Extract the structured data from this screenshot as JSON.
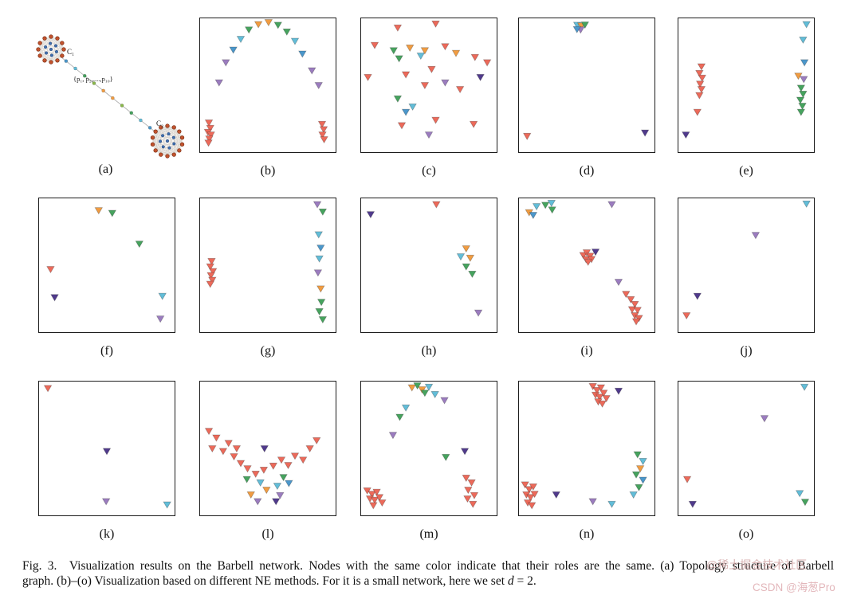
{
  "palette": {
    "R": "#ec6a5a",
    "O": "#f19c41",
    "G": "#46a35e",
    "T": "#62bdd8",
    "B": "#4b97cb",
    "P": "#9b7cbf",
    "D": "#503a8c"
  },
  "topology": {
    "c1_label": "C₁",
    "c2_label": "C₂",
    "path_label": "{p₁, p₂,....,p₁₀}",
    "cluster_node_color": "#c2532e",
    "cluster_node_stroke": "#7a2d12",
    "inner_node_color": "#3f6fae",
    "inner_node_stroke": "#28477c",
    "edge_color": "#c9c2b8",
    "path_line_color": "#9a9a9a",
    "path_colors": [
      "#4b97cb",
      "#62bdd8",
      "#46a35e",
      "#8ab84a",
      "#f19c41",
      "#f19c41",
      "#8ab84a",
      "#46a35e",
      "#62bdd8",
      "#4b97cb"
    ]
  },
  "panels": [
    {
      "id": "a",
      "label": "(a)",
      "type": "topology"
    },
    {
      "id": "b",
      "label": "(b)",
      "type": "scatter",
      "points": [
        [
          0.065,
          0.78,
          "R"
        ],
        [
          0.075,
          0.82,
          "R"
        ],
        [
          0.058,
          0.85,
          "R"
        ],
        [
          0.08,
          0.87,
          "R"
        ],
        [
          0.068,
          0.9,
          "R"
        ],
        [
          0.062,
          0.93,
          "R"
        ],
        [
          0.9,
          0.79,
          "R"
        ],
        [
          0.912,
          0.83,
          "R"
        ],
        [
          0.903,
          0.87,
          "R"
        ],
        [
          0.915,
          0.905,
          "R"
        ],
        [
          0.14,
          0.48,
          "P"
        ],
        [
          0.19,
          0.33,
          "P"
        ],
        [
          0.245,
          0.235,
          "B"
        ],
        [
          0.3,
          0.155,
          "T"
        ],
        [
          0.36,
          0.085,
          "G"
        ],
        [
          0.43,
          0.045,
          "O"
        ],
        [
          0.505,
          0.03,
          "O"
        ],
        [
          0.575,
          0.05,
          "G"
        ],
        [
          0.64,
          0.1,
          "G"
        ],
        [
          0.7,
          0.17,
          "T"
        ],
        [
          0.755,
          0.265,
          "B"
        ],
        [
          0.825,
          0.39,
          "P"
        ],
        [
          0.875,
          0.5,
          "P"
        ]
      ]
    },
    {
      "id": "c",
      "label": "(c)",
      "type": "scatter",
      "points": [
        [
          0.27,
          0.07,
          "R"
        ],
        [
          0.55,
          0.04,
          "R"
        ],
        [
          0.1,
          0.2,
          "R"
        ],
        [
          0.24,
          0.24,
          "G"
        ],
        [
          0.36,
          0.22,
          "O"
        ],
        [
          0.28,
          0.3,
          "G"
        ],
        [
          0.44,
          0.28,
          "T"
        ],
        [
          0.47,
          0.24,
          "O"
        ],
        [
          0.62,
          0.21,
          "R"
        ],
        [
          0.7,
          0.26,
          "O"
        ],
        [
          0.84,
          0.29,
          "R"
        ],
        [
          0.93,
          0.33,
          "R"
        ],
        [
          0.88,
          0.44,
          "D"
        ],
        [
          0.05,
          0.44,
          "R"
        ],
        [
          0.33,
          0.42,
          "R"
        ],
        [
          0.52,
          0.38,
          "R"
        ],
        [
          0.47,
          0.5,
          "R"
        ],
        [
          0.62,
          0.48,
          "P"
        ],
        [
          0.73,
          0.53,
          "R"
        ],
        [
          0.27,
          0.6,
          "G"
        ],
        [
          0.33,
          0.7,
          "B"
        ],
        [
          0.38,
          0.66,
          "T"
        ],
        [
          0.3,
          0.8,
          "R"
        ],
        [
          0.55,
          0.76,
          "R"
        ],
        [
          0.5,
          0.87,
          "P"
        ],
        [
          0.83,
          0.79,
          "R"
        ]
      ]
    },
    {
      "id": "d",
      "label": "(d)",
      "type": "scatter",
      "points": [
        [
          0.43,
          0.05,
          "T"
        ],
        [
          0.46,
          0.055,
          "O"
        ],
        [
          0.487,
          0.048,
          "G"
        ],
        [
          0.455,
          0.085,
          "P"
        ],
        [
          0.428,
          0.082,
          "B"
        ],
        [
          0.06,
          0.88,
          "R"
        ],
        [
          0.93,
          0.855,
          "D"
        ]
      ]
    },
    {
      "id": "e",
      "label": "(e)",
      "type": "scatter",
      "points": [
        [
          0.945,
          0.045,
          "T"
        ],
        [
          0.92,
          0.16,
          "T"
        ],
        [
          0.93,
          0.33,
          "B"
        ],
        [
          0.17,
          0.36,
          "R"
        ],
        [
          0.155,
          0.41,
          "R"
        ],
        [
          0.175,
          0.445,
          "R"
        ],
        [
          0.16,
          0.49,
          "R"
        ],
        [
          0.17,
          0.53,
          "R"
        ],
        [
          0.155,
          0.575,
          "R"
        ],
        [
          0.14,
          0.7,
          "R"
        ],
        [
          0.885,
          0.43,
          "O"
        ],
        [
          0.925,
          0.455,
          "P"
        ],
        [
          0.905,
          0.52,
          "G"
        ],
        [
          0.92,
          0.565,
          "G"
        ],
        [
          0.9,
          0.61,
          "G"
        ],
        [
          0.915,
          0.655,
          "G"
        ],
        [
          0.905,
          0.7,
          "G"
        ],
        [
          0.055,
          0.87,
          "D"
        ]
      ]
    },
    {
      "id": "f",
      "label": "(f)",
      "type": "scatter",
      "points": [
        [
          0.44,
          0.09,
          "O"
        ],
        [
          0.54,
          0.11,
          "G"
        ],
        [
          0.74,
          0.34,
          "G"
        ],
        [
          0.085,
          0.53,
          "R"
        ],
        [
          0.115,
          0.74,
          "D"
        ],
        [
          0.91,
          0.73,
          "T"
        ],
        [
          0.895,
          0.9,
          "P"
        ]
      ]
    },
    {
      "id": "g",
      "label": "(g)",
      "type": "scatter",
      "points": [
        [
          0.085,
          0.47,
          "R"
        ],
        [
          0.075,
          0.51,
          "R"
        ],
        [
          0.095,
          0.545,
          "R"
        ],
        [
          0.08,
          0.575,
          "R"
        ],
        [
          0.09,
          0.61,
          "R"
        ],
        [
          0.075,
          0.64,
          "R"
        ],
        [
          0.865,
          0.045,
          "P"
        ],
        [
          0.905,
          0.1,
          "G"
        ],
        [
          0.875,
          0.27,
          "T"
        ],
        [
          0.89,
          0.37,
          "B"
        ],
        [
          0.88,
          0.45,
          "T"
        ],
        [
          0.87,
          0.555,
          "P"
        ],
        [
          0.89,
          0.675,
          "O"
        ],
        [
          0.895,
          0.775,
          "G"
        ],
        [
          0.88,
          0.845,
          "G"
        ],
        [
          0.905,
          0.905,
          "G"
        ]
      ]
    },
    {
      "id": "h",
      "label": "(h)",
      "type": "scatter",
      "points": [
        [
          0.07,
          0.12,
          "D"
        ],
        [
          0.555,
          0.045,
          "R"
        ],
        [
          0.775,
          0.375,
          "O"
        ],
        [
          0.735,
          0.435,
          "T"
        ],
        [
          0.805,
          0.445,
          "O"
        ],
        [
          0.775,
          0.51,
          "G"
        ],
        [
          0.82,
          0.565,
          "G"
        ],
        [
          0.865,
          0.855,
          "P"
        ]
      ]
    },
    {
      "id": "i",
      "label": "(i)",
      "type": "scatter",
      "points": [
        [
          0.075,
          0.105,
          "O"
        ],
        [
          0.13,
          0.06,
          "T"
        ],
        [
          0.105,
          0.125,
          "B"
        ],
        [
          0.195,
          0.05,
          "G"
        ],
        [
          0.24,
          0.035,
          "T"
        ],
        [
          0.245,
          0.085,
          "G"
        ],
        [
          0.685,
          0.045,
          "P"
        ],
        [
          0.475,
          0.425,
          "R"
        ],
        [
          0.5,
          0.405,
          "R"
        ],
        [
          0.525,
          0.43,
          "R"
        ],
        [
          0.495,
          0.455,
          "R"
        ],
        [
          0.535,
          0.455,
          "R"
        ],
        [
          0.51,
          0.475,
          "R"
        ],
        [
          0.565,
          0.4,
          "D"
        ],
        [
          0.735,
          0.625,
          "P"
        ],
        [
          0.79,
          0.715,
          "R"
        ],
        [
          0.825,
          0.755,
          "R"
        ],
        [
          0.855,
          0.79,
          "R"
        ],
        [
          0.835,
          0.83,
          "R"
        ],
        [
          0.875,
          0.835,
          "R"
        ],
        [
          0.855,
          0.875,
          "R"
        ],
        [
          0.885,
          0.895,
          "R"
        ],
        [
          0.865,
          0.92,
          "R"
        ]
      ]
    },
    {
      "id": "j",
      "label": "(j)",
      "type": "scatter",
      "points": [
        [
          0.945,
          0.04,
          "T"
        ],
        [
          0.57,
          0.275,
          "P"
        ],
        [
          0.14,
          0.73,
          "D"
        ],
        [
          0.06,
          0.875,
          "R"
        ]
      ]
    },
    {
      "id": "k",
      "label": "(k)",
      "type": "scatter",
      "points": [
        [
          0.065,
          0.05,
          "R"
        ],
        [
          0.5,
          0.52,
          "D"
        ],
        [
          0.495,
          0.895,
          "P"
        ],
        [
          0.945,
          0.92,
          "T"
        ]
      ]
    },
    {
      "id": "l",
      "label": "(l)",
      "type": "scatter",
      "points": [
        [
          0.065,
          0.37,
          "R"
        ],
        [
          0.12,
          0.42,
          "R"
        ],
        [
          0.09,
          0.5,
          "R"
        ],
        [
          0.17,
          0.52,
          "R"
        ],
        [
          0.21,
          0.46,
          "R"
        ],
        [
          0.25,
          0.56,
          "R"
        ],
        [
          0.3,
          0.61,
          "R"
        ],
        [
          0.27,
          0.5,
          "R"
        ],
        [
          0.35,
          0.65,
          "R"
        ],
        [
          0.41,
          0.69,
          "R"
        ],
        [
          0.47,
          0.66,
          "R"
        ],
        [
          0.54,
          0.63,
          "R"
        ],
        [
          0.6,
          0.585,
          "R"
        ],
        [
          0.65,
          0.625,
          "R"
        ],
        [
          0.7,
          0.555,
          "R"
        ],
        [
          0.76,
          0.585,
          "R"
        ],
        [
          0.81,
          0.5,
          "R"
        ],
        [
          0.86,
          0.44,
          "R"
        ],
        [
          0.475,
          0.5,
          "D"
        ],
        [
          0.56,
          0.895,
          "D"
        ],
        [
          0.345,
          0.73,
          "G"
        ],
        [
          0.615,
          0.715,
          "G"
        ],
        [
          0.445,
          0.755,
          "T"
        ],
        [
          0.57,
          0.78,
          "T"
        ],
        [
          0.655,
          0.76,
          "B"
        ],
        [
          0.375,
          0.845,
          "O"
        ],
        [
          0.49,
          0.81,
          "O"
        ],
        [
          0.425,
          0.895,
          "P"
        ],
        [
          0.59,
          0.85,
          "P"
        ]
      ]
    },
    {
      "id": "m",
      "label": "(m)",
      "type": "scatter",
      "points": [
        [
          0.375,
          0.045,
          "O"
        ],
        [
          0.415,
          0.03,
          "G"
        ],
        [
          0.45,
          0.06,
          "O"
        ],
        [
          0.5,
          0.04,
          "T"
        ],
        [
          0.47,
          0.085,
          "G"
        ],
        [
          0.545,
          0.095,
          "T"
        ],
        [
          0.615,
          0.14,
          "P"
        ],
        [
          0.33,
          0.195,
          "T"
        ],
        [
          0.285,
          0.265,
          "G"
        ],
        [
          0.235,
          0.4,
          "P"
        ],
        [
          0.765,
          0.52,
          "D"
        ],
        [
          0.625,
          0.565,
          "G"
        ],
        [
          0.045,
          0.815,
          "R"
        ],
        [
          0.08,
          0.84,
          "R"
        ],
        [
          0.115,
          0.825,
          "R"
        ],
        [
          0.065,
          0.875,
          "R"
        ],
        [
          0.1,
          0.885,
          "R"
        ],
        [
          0.135,
          0.865,
          "R"
        ],
        [
          0.09,
          0.925,
          "R"
        ],
        [
          0.155,
          0.905,
          "R"
        ],
        [
          0.775,
          0.72,
          "R"
        ],
        [
          0.815,
          0.755,
          "R"
        ],
        [
          0.79,
          0.81,
          "R"
        ],
        [
          0.835,
          0.85,
          "R"
        ],
        [
          0.785,
          0.875,
          "R"
        ],
        [
          0.825,
          0.915,
          "R"
        ]
      ]
    },
    {
      "id": "n",
      "label": "(n)",
      "type": "scatter",
      "points": [
        [
          0.545,
          0.035,
          "R"
        ],
        [
          0.575,
          0.065,
          "R"
        ],
        [
          0.605,
          0.045,
          "R"
        ],
        [
          0.565,
          0.1,
          "R"
        ],
        [
          0.595,
          0.115,
          "R"
        ],
        [
          0.625,
          0.085,
          "R"
        ],
        [
          0.585,
          0.15,
          "R"
        ],
        [
          0.615,
          0.165,
          "R"
        ],
        [
          0.645,
          0.125,
          "R"
        ],
        [
          0.735,
          0.07,
          "D"
        ],
        [
          0.045,
          0.77,
          "R"
        ],
        [
          0.075,
          0.805,
          "R"
        ],
        [
          0.105,
          0.785,
          "R"
        ],
        [
          0.055,
          0.845,
          "R"
        ],
        [
          0.085,
          0.865,
          "R"
        ],
        [
          0.115,
          0.84,
          "R"
        ],
        [
          0.065,
          0.905,
          "R"
        ],
        [
          0.095,
          0.925,
          "R"
        ],
        [
          0.275,
          0.845,
          "D"
        ],
        [
          0.875,
          0.545,
          "G"
        ],
        [
          0.915,
          0.595,
          "T"
        ],
        [
          0.895,
          0.65,
          "O"
        ],
        [
          0.865,
          0.695,
          "G"
        ],
        [
          0.915,
          0.735,
          "B"
        ],
        [
          0.885,
          0.79,
          "G"
        ],
        [
          0.845,
          0.845,
          "T"
        ],
        [
          0.545,
          0.895,
          "P"
        ],
        [
          0.685,
          0.915,
          "T"
        ]
      ]
    },
    {
      "id": "o",
      "label": "(o)",
      "type": "scatter",
      "points": [
        [
          0.93,
          0.04,
          "T"
        ],
        [
          0.635,
          0.275,
          "P"
        ],
        [
          0.065,
          0.73,
          "R"
        ],
        [
          0.105,
          0.915,
          "D"
        ],
        [
          0.895,
          0.835,
          "T"
        ],
        [
          0.935,
          0.9,
          "G"
        ]
      ]
    }
  ],
  "caption": {
    "line1": "Fig. 3.  Visualization results on the Barbell network. Nodes with the same color indicate that their roles are the same. (a) Topology structure of Barbell",
    "line2_pre": "graph. (b)–(o) Visualization based on different NE methods. For it is a small network, here we set ",
    "line2_var": "d",
    "line2_post": " = 2."
  },
  "watermarks": {
    "wm1": "@稀土掘金技术社区",
    "wm2": "CSDN @海葱Pro"
  }
}
